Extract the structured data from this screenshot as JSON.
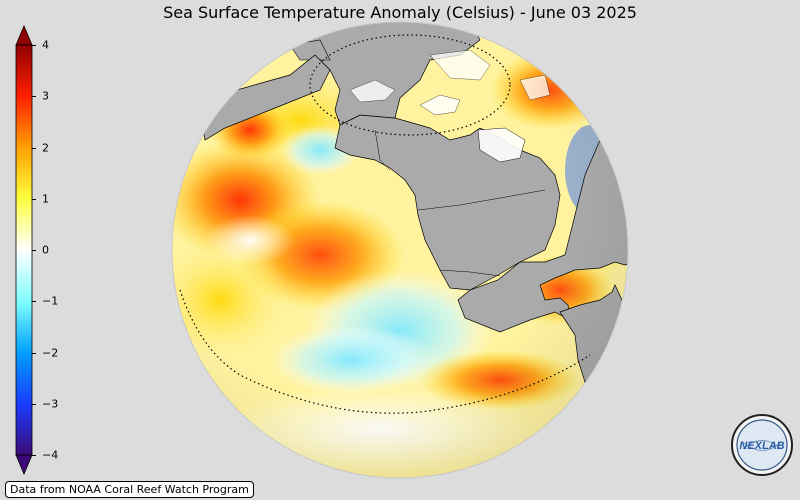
{
  "title": "Sea Surface Temperature Anomaly (Celsius) - June 03 2025",
  "source_note": "Data from NOAA Coral Reef Watch Program",
  "colorbar": {
    "min": -4,
    "max": 4,
    "ticks": [
      "4",
      "3",
      "2",
      "1",
      "0",
      "−1",
      "−2",
      "−3",
      "−4"
    ],
    "extend": "both",
    "colors": [
      "#3c0a78",
      "#1a3cff",
      "#00a0ff",
      "#80ffff",
      "#ffffff",
      "#ffff40",
      "#ffa000",
      "#ff2000",
      "#900000"
    ]
  },
  "map": {
    "projection": "orthographic",
    "land_color": "#aaaaaa",
    "coastline_color": "#000000"
  },
  "logo": {
    "text": "NEXLAB"
  }
}
